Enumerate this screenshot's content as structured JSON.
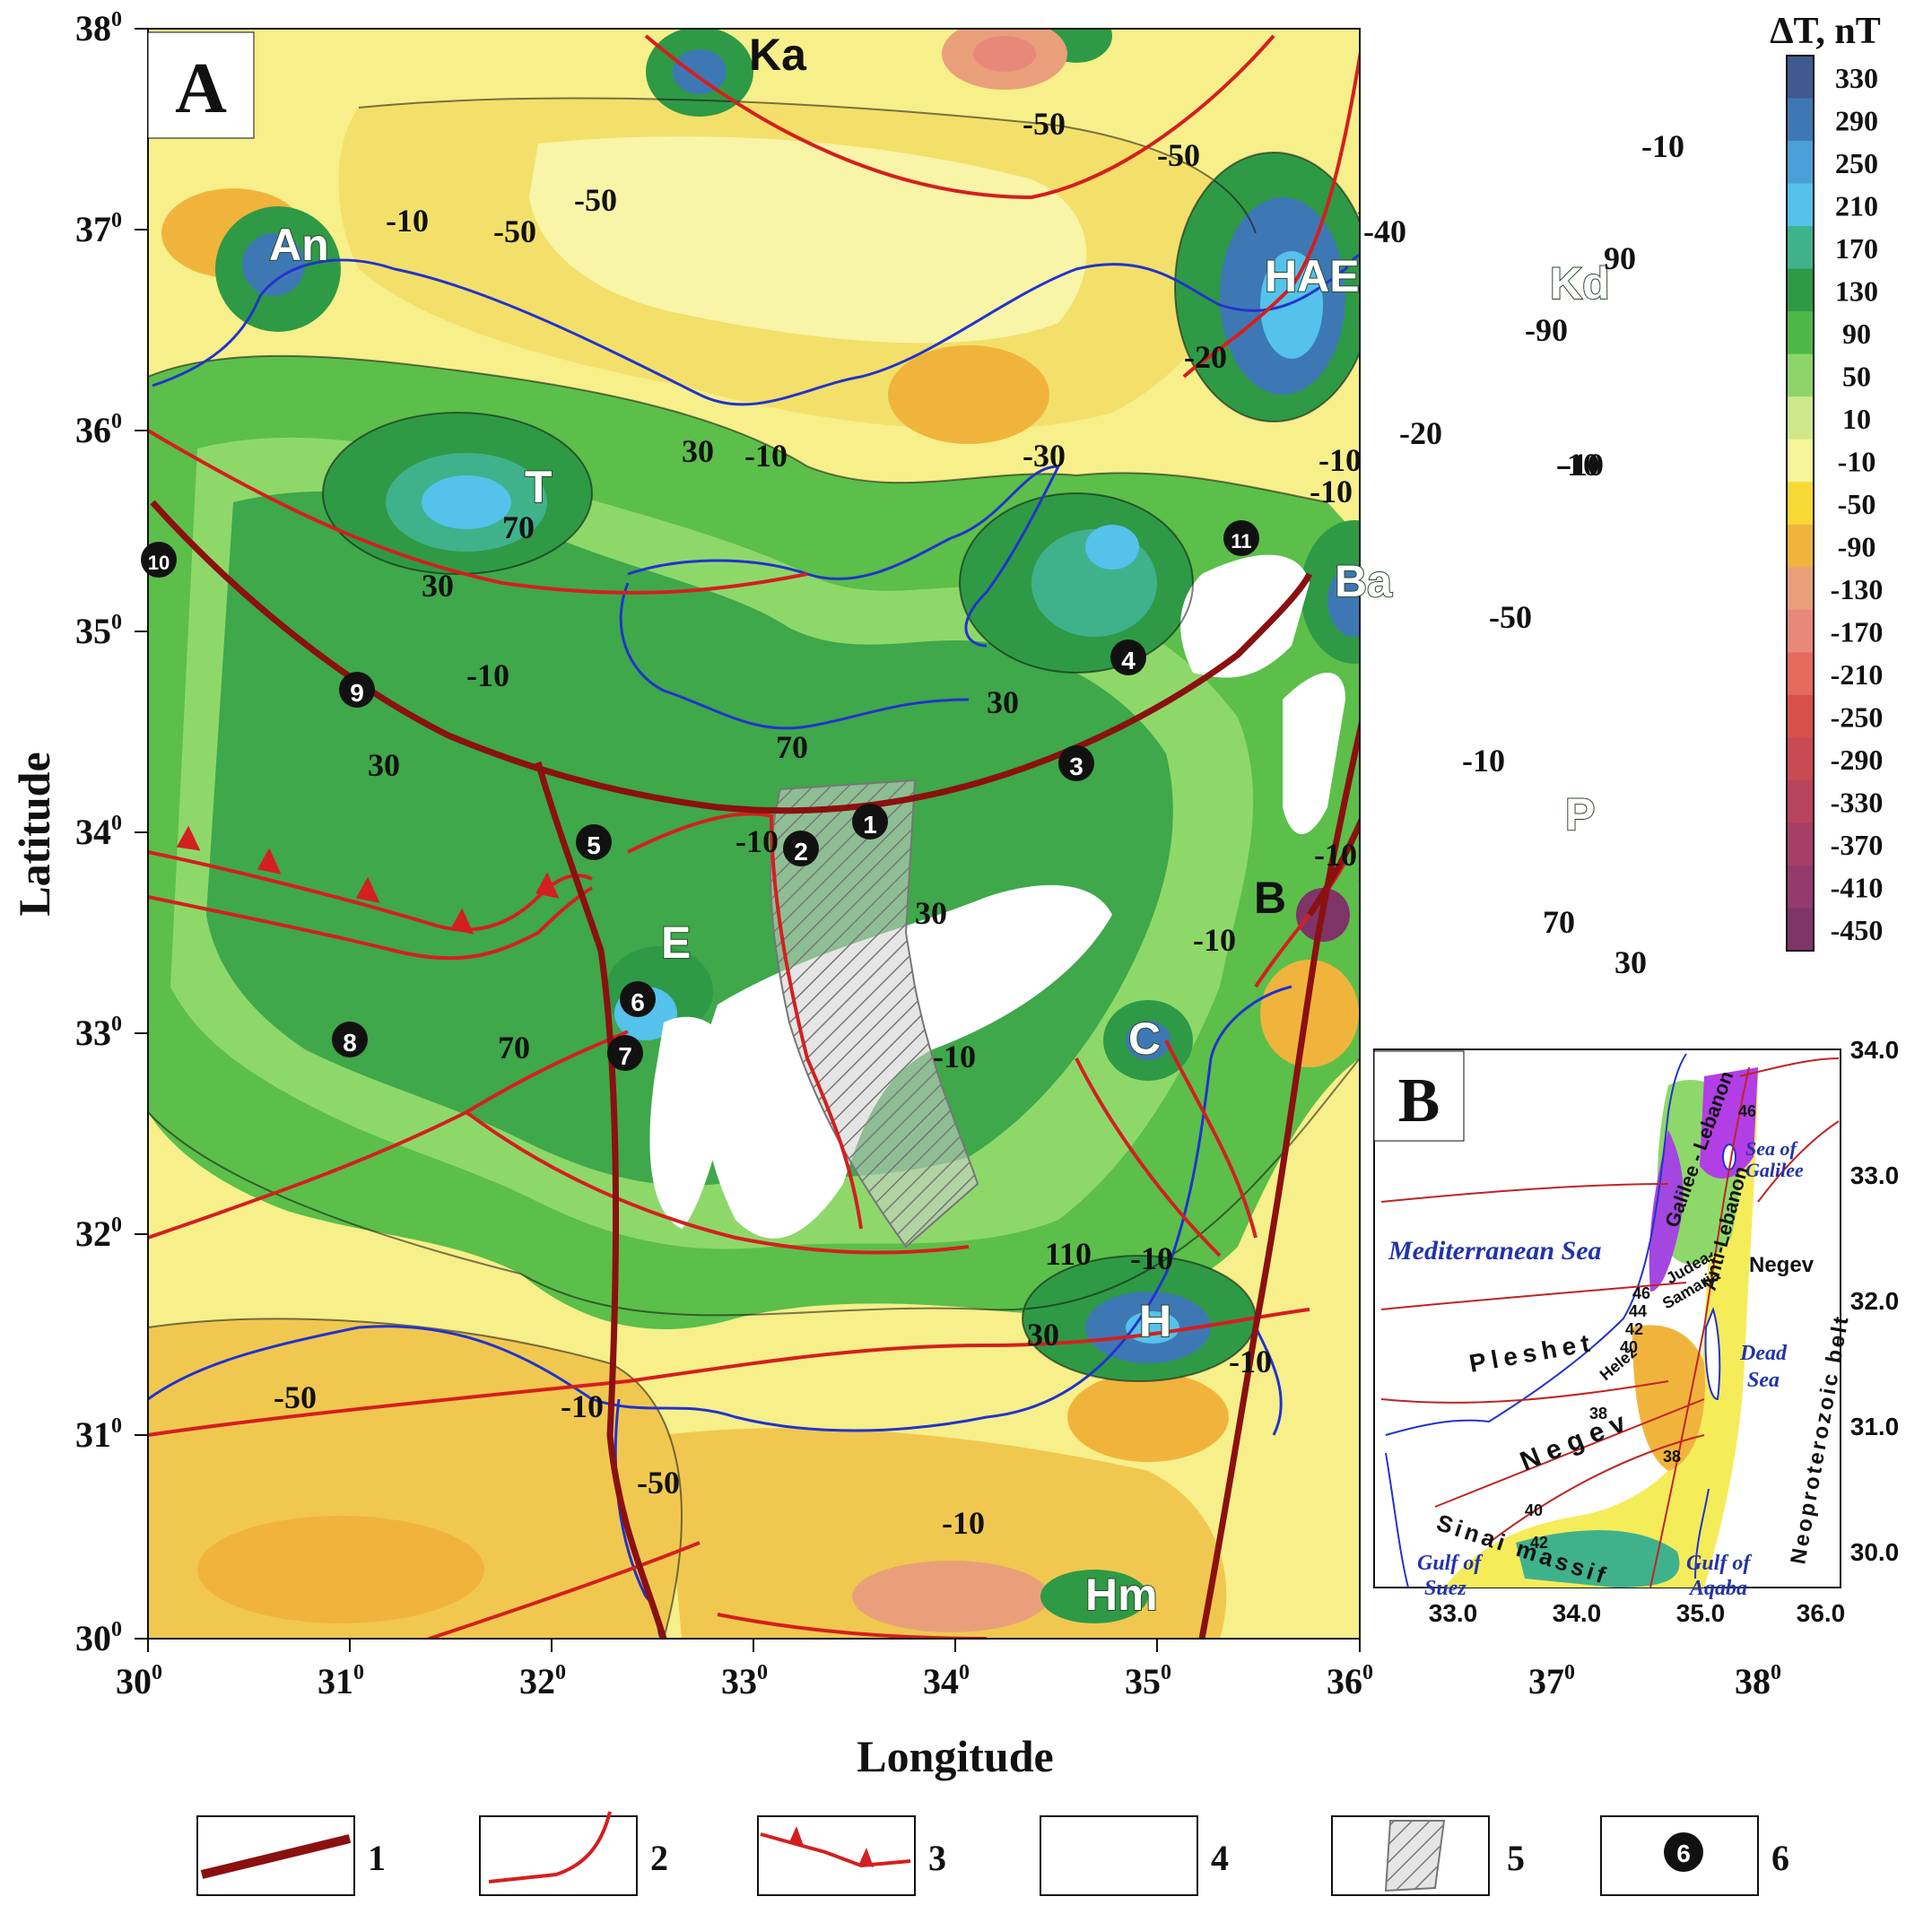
{
  "panel_a_label": "A",
  "panel_b_label": "B",
  "x_axis_title": "Longitude",
  "y_axis_title": "Latitude",
  "x_ticks": [
    "30",
    "31",
    "32",
    "33",
    "34",
    "35",
    "36",
    "37",
    "38"
  ],
  "y_ticks": [
    "30",
    "31",
    "32",
    "33",
    "34",
    "35",
    "36",
    "37",
    "38"
  ],
  "degree_symbol": "0",
  "colorbar": {
    "title": "ΔT, nT",
    "labels": [
      "330",
      "290",
      "250",
      "210",
      "170",
      "130",
      "90",
      "50",
      "10",
      "-10",
      "-50",
      "-90",
      "-130",
      "-170",
      "-210",
      "-250",
      "-290",
      "-330",
      "-370",
      "-410",
      "-450"
    ],
    "colors": [
      "#3f5a8c",
      "#3e78b4",
      "#4aa0d6",
      "#54c2ea",
      "#3fb28c",
      "#2e9a46",
      "#4db848",
      "#8fd46a",
      "#cfe98a",
      "#f6f59a",
      "#f7d936",
      "#f0b43c",
      "#e9a07a",
      "#e8887a",
      "#e46a5e",
      "#d9504a",
      "#c84a52",
      "#b8445c",
      "#a63f66",
      "#953a6c",
      "#7f3468"
    ]
  },
  "regions": [
    {
      "label": "Ka"
    },
    {
      "label": "An"
    },
    {
      "label": "HAE"
    },
    {
      "label": "Kd"
    },
    {
      "label": "T"
    },
    {
      "label": "Ba"
    },
    {
      "label": "P"
    },
    {
      "label": "B"
    },
    {
      "label": "E"
    },
    {
      "label": "C"
    },
    {
      "label": "H"
    },
    {
      "label": "Hm"
    }
  ],
  "contour_labels": [
    "-50",
    "-50",
    "-10",
    "-50",
    "-50",
    "-10",
    "-20",
    "-90",
    "-10",
    "90",
    "-40",
    "-10",
    "-30",
    "-10",
    "-20",
    "-10",
    "-50",
    "70",
    "30",
    "30",
    "-10",
    "70",
    "-10",
    "30",
    "30",
    "70",
    "30",
    "-10",
    "-10",
    "-10",
    "-10",
    "70",
    "30",
    "110",
    "-10",
    "-50",
    "-10",
    "-10",
    "-50",
    "-10",
    "30",
    "-10"
  ],
  "point_markers": [
    "1",
    "2",
    "3",
    "4",
    "5",
    "6",
    "7",
    "8",
    "9",
    "10",
    "11"
  ],
  "inset": {
    "x_ticks": [
      "33.0",
      "34.0",
      "35.0",
      "36.0"
    ],
    "y_ticks": [
      "34.0",
      "33.0",
      "32.0",
      "31.0",
      "30.0"
    ],
    "sea_labels": [
      "Mediterranean Sea",
      "Sea of",
      "Galilee",
      "Dead",
      "Sea",
      "Gulf of",
      "Suez",
      "Gulf of",
      "Aqaba"
    ],
    "terrane_labels": [
      "Galilee - Lebanon",
      "Anti-Lebanon",
      "Judea-",
      "Samaria",
      "Negev",
      "Pleshet",
      "Helez",
      "N e g e v",
      "Sinai massif",
      "Neoproterozoic belt"
    ],
    "depth_labels": [
      "46",
      "46",
      "44",
      "42",
      "40",
      "38",
      "38",
      "40",
      "42"
    ]
  },
  "legend": [
    {
      "number": "1",
      "symbol": "thick dark-red line"
    },
    {
      "number": "2",
      "symbol": "thin red line"
    },
    {
      "number": "3",
      "symbol": "red thrust line"
    },
    {
      "number": "4",
      "symbol": "white area"
    },
    {
      "number": "5",
      "symbol": "hatched area"
    },
    {
      "number": "6",
      "symbol": "numbered black dot",
      "sample": "6"
    }
  ]
}
